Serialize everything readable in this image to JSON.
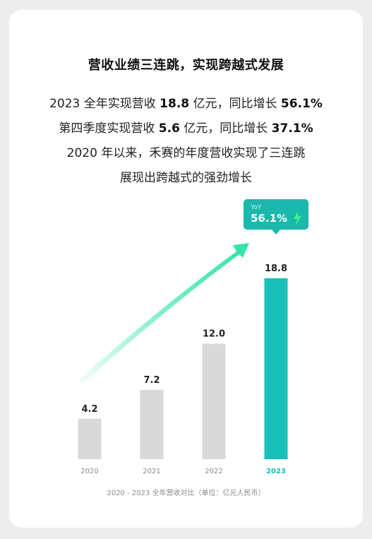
{
  "headline": "营收业绩三连跳，实现跨越式发展",
  "summary": {
    "line1_pre": "2023 全年实现营收 ",
    "line1_val1": "18.8",
    "line1_mid": " 亿元，同比增长 ",
    "line1_val2": "56.1%",
    "line2_pre": "第四季度实现营收 ",
    "line2_val1": "5.6",
    "line2_mid": " 亿元，同比增长 ",
    "line2_val2": "37.1%",
    "line3": "2020 年以来，禾赛的年度营收实现了三连跳",
    "line4": "展现出跨越式的强劲增长"
  },
  "chart_data": {
    "type": "bar",
    "categories": [
      "2020",
      "2021",
      "2022",
      "2023"
    ],
    "values": [
      4.2,
      7.2,
      12.0,
      18.8
    ],
    "value_labels": [
      "4.2",
      "7.2",
      "12.0",
      "18.8"
    ],
    "highlight_index": 3,
    "ylim": [
      0,
      20
    ],
    "title": "2020 - 2023 全年营收对比（单位：亿元人民币）",
    "callout": {
      "label": "YoY",
      "value": "56.1%"
    },
    "colors": {
      "bar": "#d9d9d9",
      "highlight_bar": "#18c0b8",
      "callout_bg": "#1cb7ac",
      "arrow": "#2de3a8",
      "axis_label": "#8a8a8a",
      "highlight_label": "#18c0b8"
    }
  }
}
